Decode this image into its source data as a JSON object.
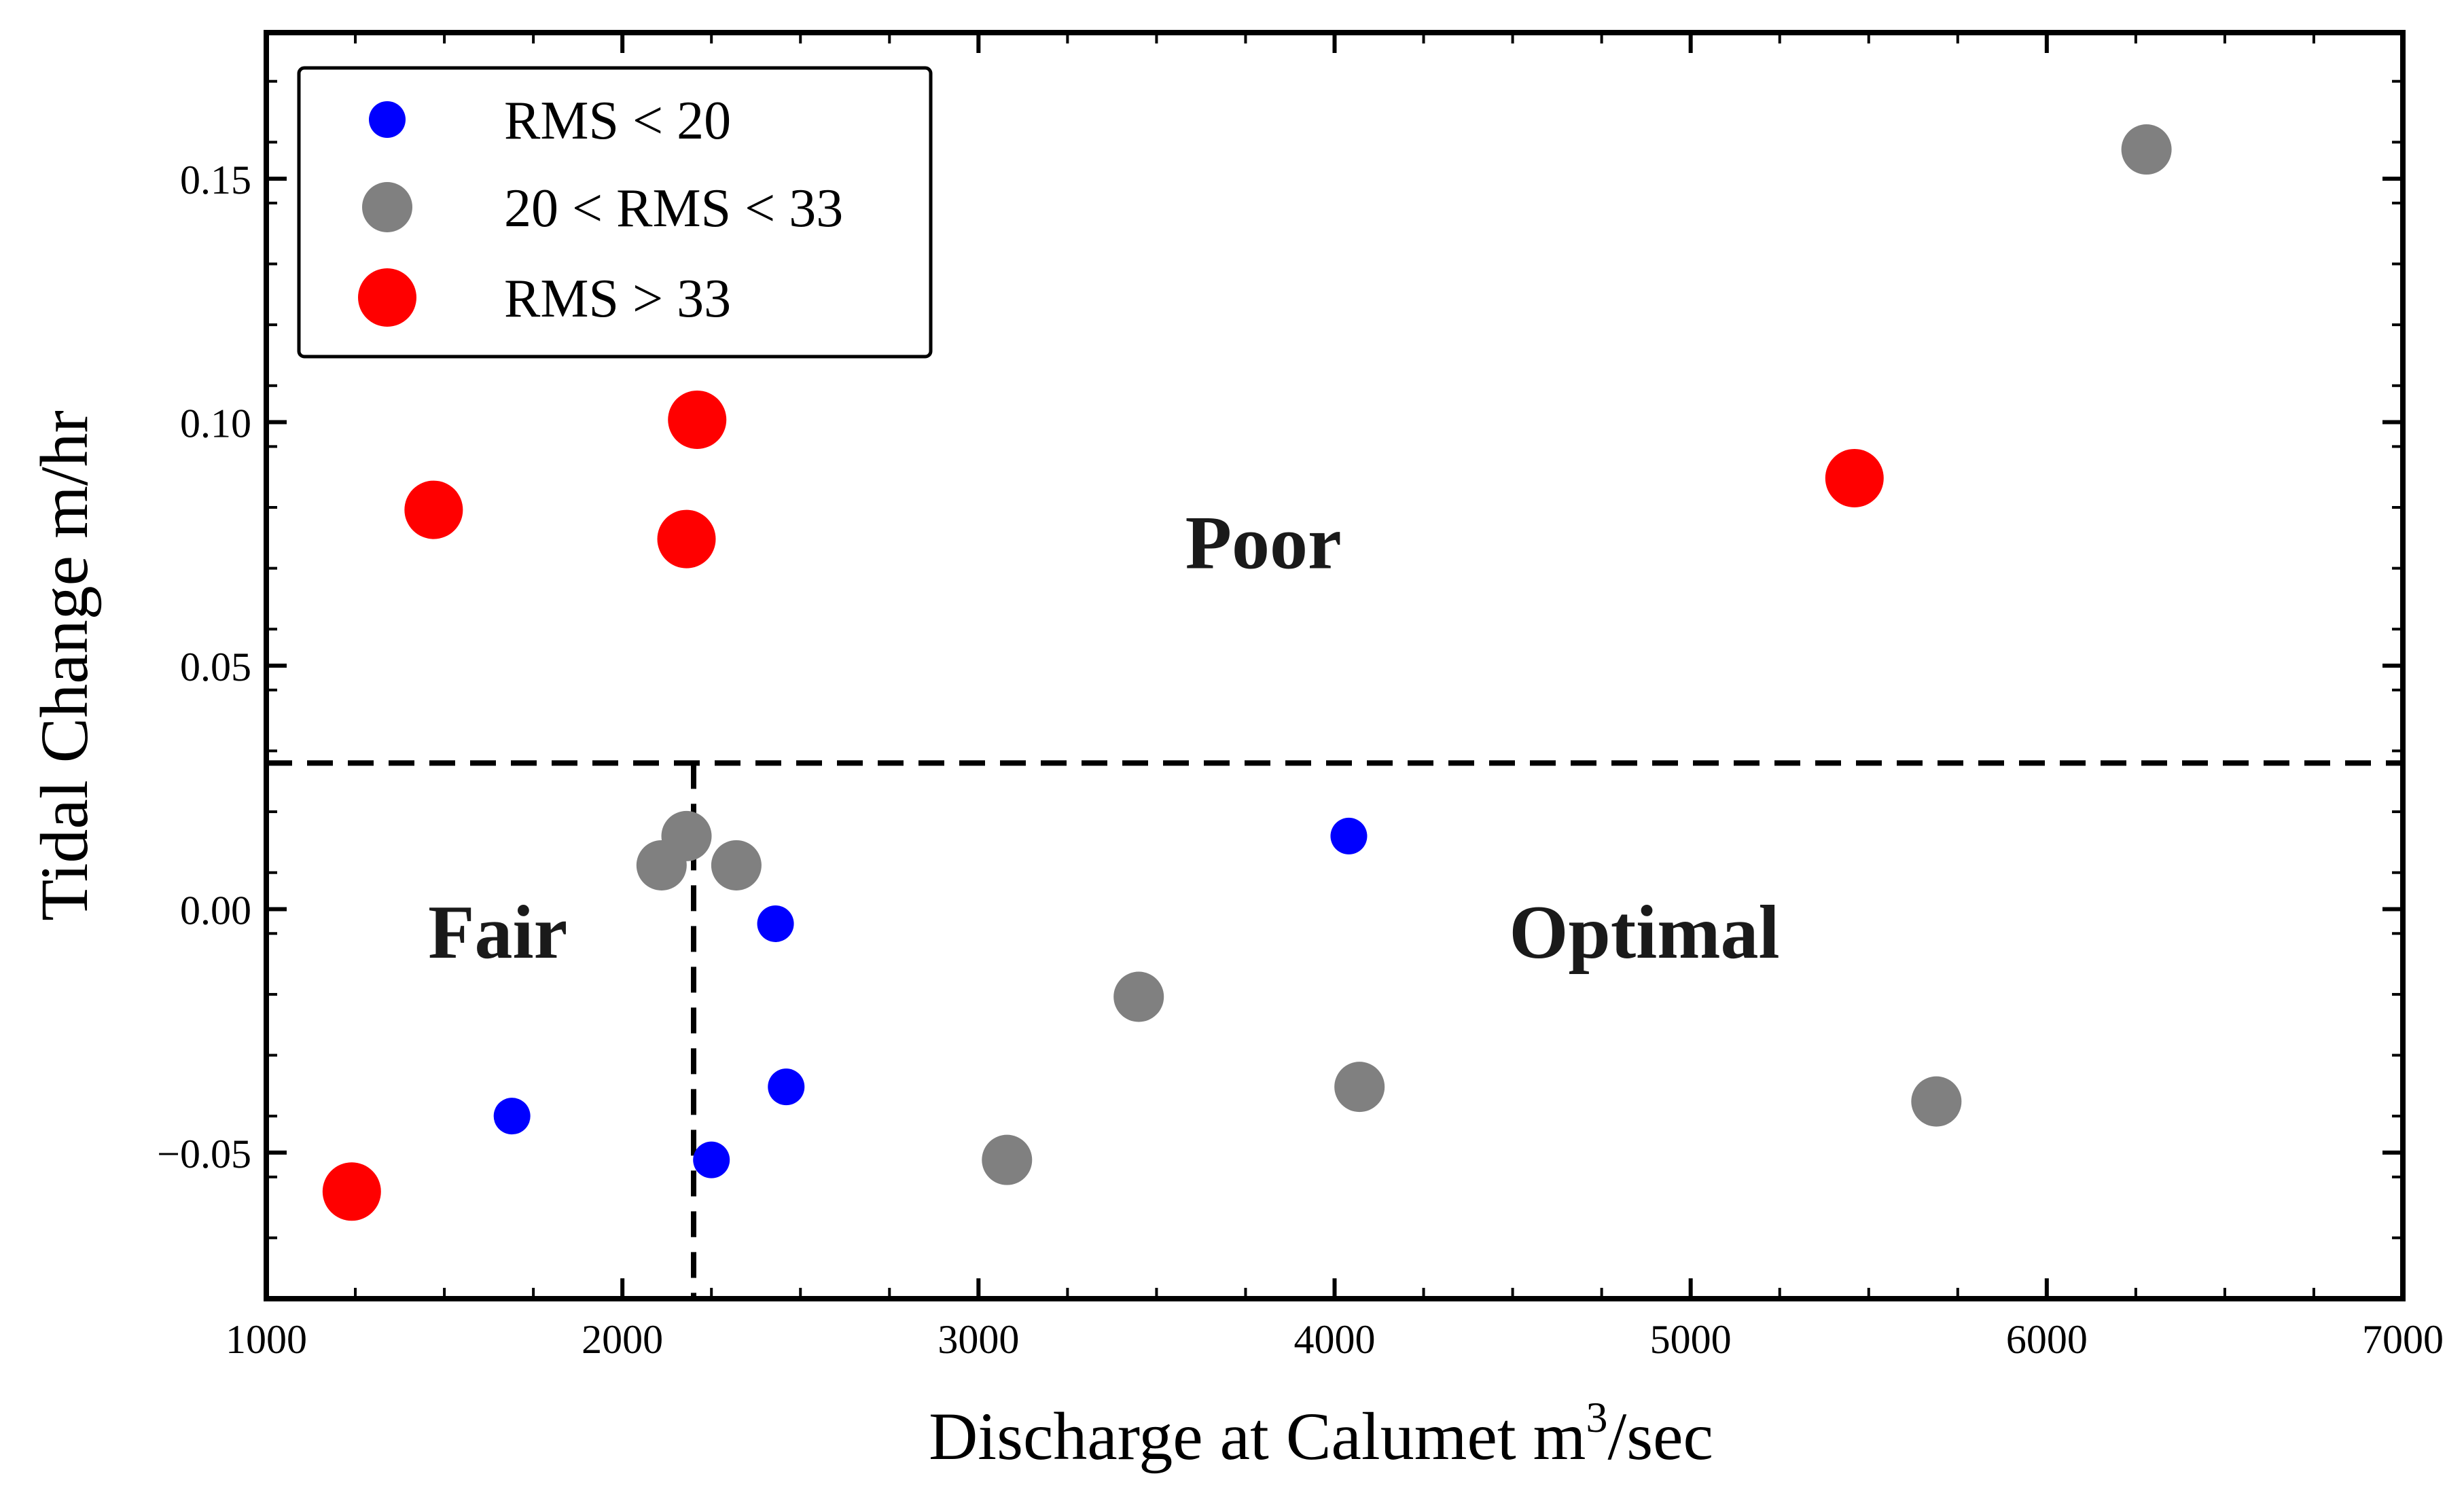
{
  "chart_data": {
    "type": "scatter",
    "title": "",
    "xlabel": "Discharge at Calumet m",
    "xlabel_sup": "3",
    "xlabel_suffix": "/sec",
    "ylabel": "Tidal Change m/hr",
    "xlim": [
      1000,
      7000
    ],
    "ylim": [
      -0.08,
      0.18
    ],
    "xticks": [
      1000,
      2000,
      3000,
      4000,
      5000,
      6000,
      7000
    ],
    "yticks": [
      -0.05,
      0.0,
      0.05,
      0.1,
      0.15
    ],
    "xtick_labels": [
      "1000",
      "2000",
      "3000",
      "4000",
      "5000",
      "6000",
      "7000"
    ],
    "ytick_labels": [
      "−0.05",
      "0.00",
      "0.05",
      "0.10",
      "0.15"
    ],
    "grid": false,
    "legend_position": "top-left",
    "series": [
      {
        "name": "RMS < 20",
        "color": "#0000ff",
        "marker_size": "small",
        "points": [
          {
            "x": 1690,
            "y": -0.0425
          },
          {
            "x": 2250,
            "y": -0.0515
          },
          {
            "x": 2430,
            "y": -0.003
          },
          {
            "x": 2460,
            "y": -0.0365
          },
          {
            "x": 4040,
            "y": 0.015
          }
        ]
      },
      {
        "name": "20 < RMS < 33",
        "color": "#808080",
        "marker_size": "medium",
        "points": [
          {
            "x": 2110,
            "y": 0.009
          },
          {
            "x": 2180,
            "y": 0.015
          },
          {
            "x": 2320,
            "y": 0.009
          },
          {
            "x": 3080,
            "y": -0.0515
          },
          {
            "x": 3450,
            "y": -0.018
          },
          {
            "x": 4070,
            "y": -0.0365
          },
          {
            "x": 5690,
            "y": -0.0395
          },
          {
            "x": 6280,
            "y": 0.156
          }
        ]
      },
      {
        "name": "RMS > 33",
        "color": "#ff0000",
        "marker_size": "large",
        "points": [
          {
            "x": 1240,
            "y": -0.058
          },
          {
            "x": 1470,
            "y": 0.082
          },
          {
            "x": 2180,
            "y": 0.076
          },
          {
            "x": 2210,
            "y": 0.1005
          },
          {
            "x": 5460,
            "y": 0.0885
          }
        ]
      }
    ],
    "threshold_lines": {
      "horizontal_y": 0.03,
      "vertical_x": 2200
    },
    "region_labels": [
      {
        "text": "Poor",
        "x": 3800,
        "y": 0.07
      },
      {
        "text": "Fair",
        "x": 1650,
        "y": -0.01
      },
      {
        "text": "Optimal",
        "x": 4870,
        "y": -0.01
      }
    ]
  }
}
